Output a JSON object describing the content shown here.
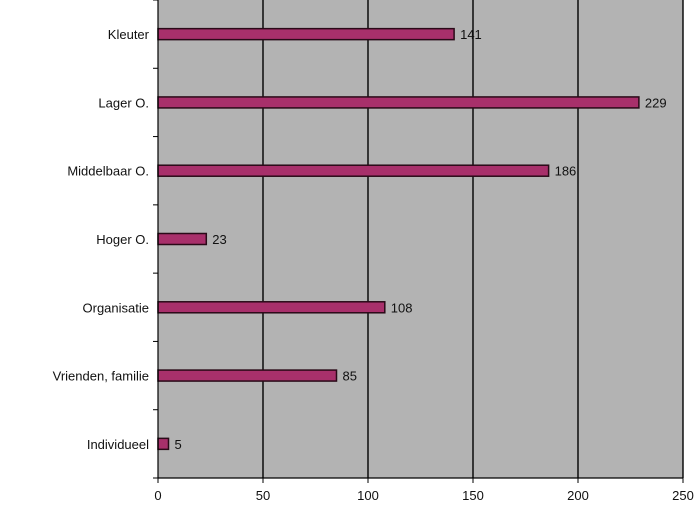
{
  "chart_data": {
    "type": "bar",
    "orientation": "horizontal",
    "categories": [
      "Kleuter",
      "Lager O.",
      "Middelbaar O.",
      "Hoger O.",
      "Organisatie",
      "Vrienden, familie",
      "Individueel"
    ],
    "values": [
      141,
      229,
      186,
      23,
      108,
      85,
      5
    ],
    "xlim": [
      0,
      250
    ],
    "xticks": [
      0,
      50,
      100,
      150,
      200,
      250
    ],
    "grid": true,
    "data_labels": true,
    "title": "",
    "xlabel": "",
    "ylabel": "",
    "colors": {
      "plot_background": "#b3b3b3",
      "bar_fill": "#a8306b",
      "bar_stroke": "#2a0a18",
      "grid": "#000000"
    }
  }
}
